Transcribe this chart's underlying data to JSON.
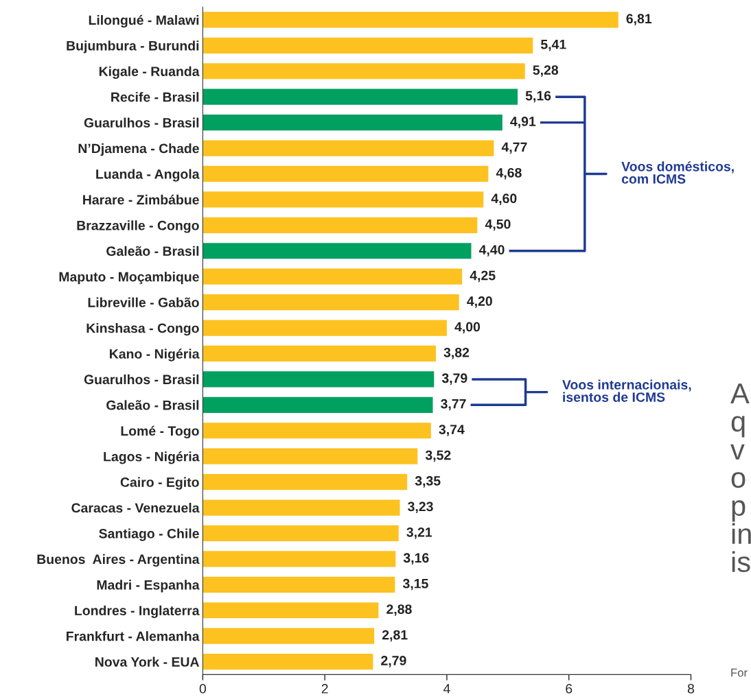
{
  "chart_data": {
    "type": "bar",
    "orientation": "horizontal",
    "categories": [
      "Lilongué - Malawi",
      "Bujumbura - Burundi",
      "Kigale - Ruanda",
      "Recife - Brasil",
      "Guarulhos - Brasil",
      "N’Djamena - Chade",
      "Luanda - Angola",
      "Harare - Zimbábue",
      "Brazzaville - Congo",
      "Galeão - Brasil",
      "Maputo - Moçambique",
      "Libreville - Gabão",
      "Kinshasa - Congo",
      "Kano - Nigéria",
      "Guarulhos - Brasil",
      "Galeão - Brasil",
      "Lomé - Togo",
      "Lagos - Nigéria",
      "Cairo - Egito",
      "Caracas - Venezuela",
      "Santiago - Chile",
      "Buenos  Aires - Argentina",
      "Madri - Espanha",
      "Londres - Inglaterra",
      "Frankfurt - Alemanha",
      "Nova York - EUA"
    ],
    "values": [
      6.81,
      5.41,
      5.28,
      5.16,
      4.91,
      4.77,
      4.68,
      4.6,
      4.5,
      4.4,
      4.25,
      4.2,
      4.0,
      3.82,
      3.79,
      3.77,
      3.74,
      3.52,
      3.35,
      3.23,
      3.21,
      3.16,
      3.15,
      2.88,
      2.81,
      2.79
    ],
    "value_labels": [
      "6,81",
      "5,41",
      "5,28",
      "5,16",
      "4,91",
      "4,77",
      "4,68",
      "4,60",
      "4,50",
      "4,40",
      "4,25",
      "4,20",
      "4,00",
      "3,82",
      "3,79",
      "3,77",
      "3,74",
      "3,52",
      "3,35",
      "3,23",
      "3,21",
      "3,16",
      "3,15",
      "2,88",
      "2,81",
      "2,79"
    ],
    "colors": [
      "#fdc220",
      "#fdc220",
      "#fdc220",
      "#00a060",
      "#00a060",
      "#fdc220",
      "#fdc220",
      "#fdc220",
      "#fdc220",
      "#00a060",
      "#fdc220",
      "#fdc220",
      "#fdc220",
      "#fdc220",
      "#00a060",
      "#00a060",
      "#fdc220",
      "#fdc220",
      "#fdc220",
      "#fdc220",
      "#fdc220",
      "#fdc220",
      "#fdc220",
      "#fdc220",
      "#fdc220",
      "#fdc220"
    ],
    "xlim": [
      0,
      8
    ],
    "xticks": [
      0,
      2,
      4,
      6,
      8
    ],
    "grid": false,
    "legend": false,
    "annotations": [
      "Voos domésticos,\ncom ICMS",
      "Voos internacionais,\nisentos de ICMS",
      "A\nq\nv\no\np\nin\nis",
      "For"
    ]
  }
}
